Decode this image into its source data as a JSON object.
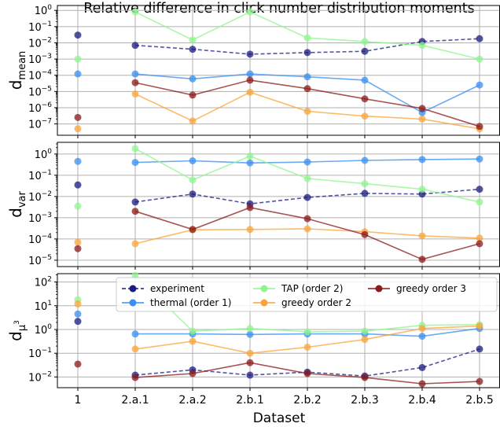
{
  "chart_data": {
    "type": "scatter",
    "title": "Relative difference in click number distribution moments",
    "xlabel": "Dataset",
    "categories": [
      "1",
      "2.a.1",
      "2.a.2",
      "2.b.1",
      "2.b.2",
      "2.b.3",
      "2.b.4",
      "2.b.5"
    ],
    "series_styles": [
      {
        "name": "experiment",
        "color": "#1a1a80",
        "dash": true
      },
      {
        "name": "thermal (order 1)",
        "color": "#3a8ff0",
        "dash": false
      },
      {
        "name": "TAP (order 2)",
        "color": "#8ef58e",
        "dash": false
      },
      {
        "name": "greedy order 2",
        "color": "#f9a43a",
        "dash": false
      },
      {
        "name": "greedy order 3",
        "color": "#8b1a1a",
        "dash": false
      }
    ],
    "panels": [
      {
        "ylabel_base": "d",
        "ylabel_sub": "mean",
        "ylabel_sup": "",
        "ylim_log": [
          -7.7,
          0.3
        ],
        "yticks": [
          {
            "exp": 0,
            "label": "10",
            "sup": "0"
          },
          {
            "exp": -1,
            "label": "10",
            "sup": "−1"
          },
          {
            "exp": -2,
            "label": "10",
            "sup": "−2"
          },
          {
            "exp": -3,
            "label": "10",
            "sup": "−3"
          },
          {
            "exp": -4,
            "label": "10",
            "sup": "−4"
          },
          {
            "exp": -5,
            "label": "10",
            "sup": "−5"
          },
          {
            "exp": -6,
            "label": "10",
            "sup": "−6"
          },
          {
            "exp": -7,
            "label": "10",
            "sup": "−7"
          }
        ],
        "series": [
          [
            0.03,
            0.007,
            0.004,
            0.002,
            0.0025,
            0.003,
            0.012,
            0.018
          ],
          [
            0.00012,
            0.00012,
            6e-05,
            0.00012,
            8e-05,
            5e-05,
            5e-07,
            2.5e-05
          ],
          [
            0.001,
            0.8,
            0.015,
            0.8,
            0.02,
            0.012,
            0.007,
            0.001
          ],
          [
            5e-08,
            7e-06,
            1.5e-07,
            9e-06,
            6e-07,
            3e-07,
            2e-07,
            5e-08
          ],
          [
            2.5e-07,
            3.5e-05,
            6e-06,
            5e-05,
            1.5e-05,
            3.5e-06,
            9e-07,
            7e-08
          ]
        ]
      },
      {
        "ylabel_base": "d",
        "ylabel_sub": "var",
        "ylabel_sup": "",
        "ylim_log": [
          -5.3,
          0.55
        ],
        "yticks": [
          {
            "exp": 0,
            "label": "10",
            "sup": "0"
          },
          {
            "exp": -1,
            "label": "10",
            "sup": "−1"
          },
          {
            "exp": -2,
            "label": "10",
            "sup": "−2"
          },
          {
            "exp": -3,
            "label": "10",
            "sup": "−3"
          },
          {
            "exp": -4,
            "label": "10",
            "sup": "−4"
          },
          {
            "exp": -5,
            "label": "10",
            "sup": "−5"
          }
        ],
        "series": [
          [
            0.035,
            0.0055,
            0.013,
            0.0045,
            0.009,
            0.014,
            0.013,
            0.022
          ],
          [
            0.45,
            0.4,
            0.48,
            0.38,
            0.42,
            0.5,
            0.55,
            0.58
          ],
          [
            0.0035,
            1.8,
            0.06,
            0.8,
            0.07,
            0.04,
            0.022,
            0.0055
          ],
          [
            7e-05,
            6e-05,
            0.00027,
            0.00028,
            0.0003,
            0.00022,
            0.00014,
            0.00011
          ],
          [
            3.5e-05,
            0.002,
            0.00028,
            0.003,
            0.0009,
            0.00016,
            1.1e-05,
            6e-05
          ]
        ]
      },
      {
        "ylabel_base": "d",
        "ylabel_sub": "μ",
        "ylabel_sup": "3",
        "ylim_log": [
          -2.45,
          2.35
        ],
        "yticks": [
          {
            "exp": 2,
            "label": "10",
            "sup": "2"
          },
          {
            "exp": 1,
            "label": "10",
            "sup": "1"
          },
          {
            "exp": 0,
            "label": "10",
            "sup": "0"
          },
          {
            "exp": -1,
            "label": "10",
            "sup": "−1"
          },
          {
            "exp": -2,
            "label": "10",
            "sup": "−2"
          }
        ],
        "series": [
          [
            2.2,
            0.012,
            0.02,
            0.012,
            0.016,
            0.011,
            0.025,
            0.15
          ],
          [
            4.5,
            0.65,
            0.65,
            0.62,
            0.65,
            0.65,
            0.52,
            1.1
          ],
          [
            18,
            190,
            0.85,
            1.1,
            0.8,
            0.85,
            1.5,
            1.6
          ],
          [
            12,
            0.15,
            0.32,
            0.1,
            0.18,
            0.38,
            1.1,
            1.4
          ],
          [
            0.035,
            0.0095,
            0.014,
            0.04,
            0.014,
            0.0095,
            0.0052,
            0.0065
          ]
        ]
      }
    ],
    "legend": {
      "placement": "top-right of third panel",
      "columns": 3
    }
  }
}
